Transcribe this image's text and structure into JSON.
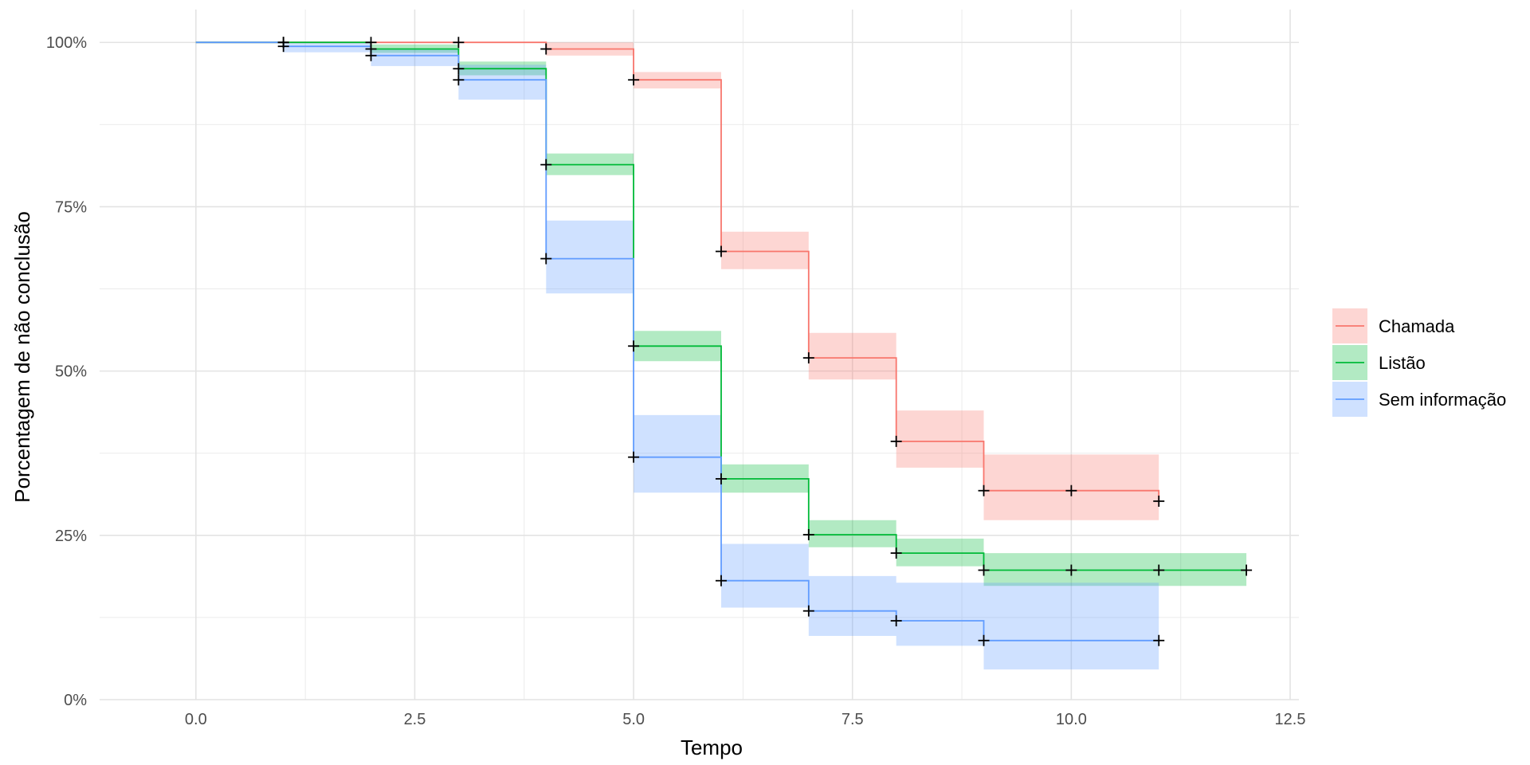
{
  "chart_data": {
    "type": "line",
    "subtype": "kaplan-meier step plot with confidence bands and censor marks",
    "xlabel": "Tempo",
    "ylabel": "Porcentagem de não conclusão",
    "xlim": [
      -1.1,
      12.6
    ],
    "ylim": [
      0,
      1.05
    ],
    "x_ticks": [
      0,
      2.5,
      5,
      7.5,
      10,
      12.5
    ],
    "x_tick_labels": [
      "0.0",
      "2.5",
      "5.0",
      "7.5",
      "10.0",
      "12.5"
    ],
    "y_ticks": [
      0,
      0.25,
      0.5,
      0.75,
      1.0
    ],
    "y_tick_labels": [
      "0%",
      "25%",
      "50%",
      "75%",
      "100%"
    ],
    "grid": true,
    "legend_position": "right",
    "series": [
      {
        "name": "Chamada",
        "color": "#F8766D",
        "steps": [
          [
            0,
            1.0
          ],
          [
            4,
            0.99
          ],
          [
            5,
            0.943
          ],
          [
            6,
            0.682
          ],
          [
            7,
            0.52
          ],
          [
            8,
            0.393
          ],
          [
            9,
            0.318
          ],
          [
            11,
            0.302
          ]
        ],
        "band": [
          [
            0,
            1.0,
            1.0
          ],
          [
            4,
            0.98,
            1.0
          ],
          [
            5,
            0.93,
            0.955
          ],
          [
            6,
            0.655,
            0.712
          ],
          [
            7,
            0.487,
            0.558
          ],
          [
            8,
            0.353,
            0.44
          ],
          [
            9,
            0.273,
            0.373
          ],
          [
            11,
            0.255,
            0.362
          ]
        ],
        "censor_x": [
          1,
          2,
          3,
          4,
          5,
          6,
          7,
          8,
          9,
          10,
          11
        ]
      },
      {
        "name": "Listão",
        "color": "#00BA38",
        "steps": [
          [
            0,
            1.0
          ],
          [
            2,
            0.99
          ],
          [
            3,
            0.96
          ],
          [
            4,
            0.814
          ],
          [
            5,
            0.538
          ],
          [
            6,
            0.336
          ],
          [
            7,
            0.251
          ],
          [
            8,
            0.223
          ],
          [
            9,
            0.197
          ],
          [
            12,
            0.197
          ]
        ],
        "band": [
          [
            0,
            1.0,
            1.0
          ],
          [
            2,
            0.984,
            0.997
          ],
          [
            3,
            0.95,
            0.971
          ],
          [
            4,
            0.798,
            0.831
          ],
          [
            5,
            0.515,
            0.561
          ],
          [
            6,
            0.315,
            0.358
          ],
          [
            7,
            0.232,
            0.273
          ],
          [
            8,
            0.203,
            0.245
          ],
          [
            9,
            0.173,
            0.223
          ],
          [
            12,
            0.173,
            0.223
          ]
        ],
        "censor_x": [
          1,
          2,
          3,
          4,
          5,
          6,
          7,
          8,
          9,
          10,
          11,
          12
        ]
      },
      {
        "name": "Sem informação",
        "color": "#619CFF",
        "steps": [
          [
            0,
            1.0
          ],
          [
            1,
            0.994
          ],
          [
            2,
            0.98
          ],
          [
            3,
            0.943
          ],
          [
            4,
            0.671
          ],
          [
            5,
            0.369
          ],
          [
            6,
            0.181
          ],
          [
            7,
            0.135
          ],
          [
            8,
            0.12
          ],
          [
            9,
            0.09
          ],
          [
            11,
            0.09
          ]
        ],
        "band": [
          [
            0,
            1.0,
            1.0
          ],
          [
            1,
            0.985,
            1.0
          ],
          [
            2,
            0.964,
            0.99
          ],
          [
            3,
            0.913,
            0.966
          ],
          [
            4,
            0.618,
            0.729
          ],
          [
            5,
            0.315,
            0.433
          ],
          [
            6,
            0.14,
            0.237
          ],
          [
            7,
            0.097,
            0.188
          ],
          [
            8,
            0.082,
            0.178
          ],
          [
            9,
            0.046,
            0.178
          ],
          [
            11,
            0.046,
            0.178
          ]
        ],
        "censor_x": [
          1,
          2,
          3,
          4,
          5,
          6,
          7,
          8,
          9,
          11
        ]
      }
    ]
  }
}
